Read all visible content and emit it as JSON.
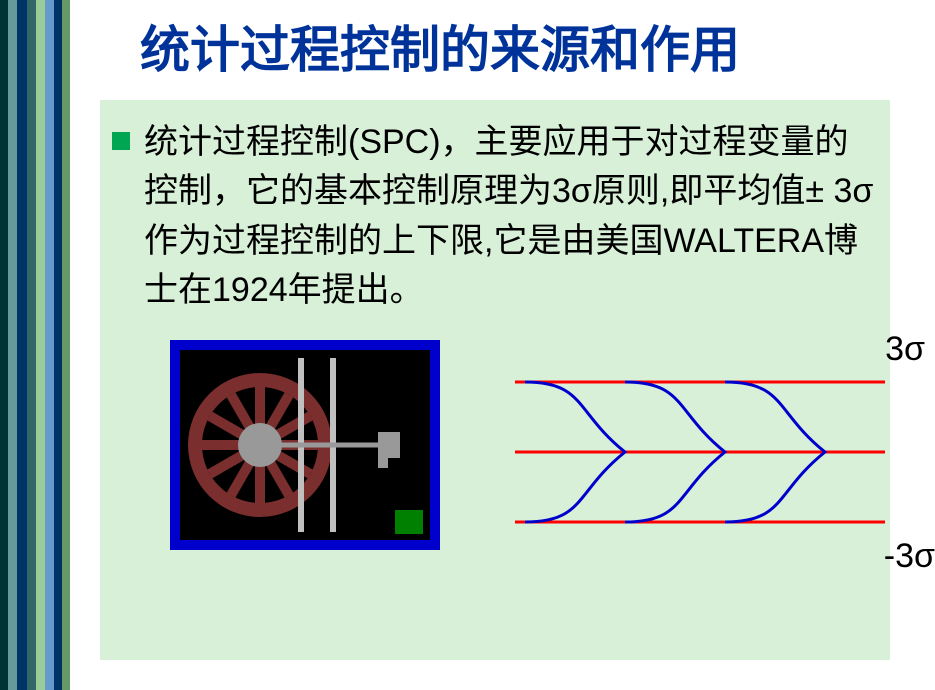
{
  "sideStripes": {
    "colors": [
      "#003333",
      "#669999",
      "#003366",
      "#336666",
      "#99cc99",
      "#6699cc",
      "#003366",
      "#669966"
    ],
    "widths": [
      8,
      9,
      10,
      9,
      9,
      9,
      8,
      8
    ]
  },
  "title": "统计过程控制的来源和作用",
  "bodyText": "统计过程控制(SPC)，主要应用于对过程变量的控制，它的基本控制原理为3σ原则,即平均值± 3σ作为过程控制的上下限,它是由美国WALTERA博士在1924年提出。",
  "contentBackground": "#d8f0d8",
  "titleColor": "#003399",
  "bulletColor": "#00a651",
  "wheel": {
    "borderColor": "#0000cc",
    "bgColor": "#000000",
    "rimColor": "#7a2e2e",
    "hubColor": "#999999",
    "spokeColor": "#999999",
    "barColor": "#c0c0c0",
    "accentColor": "#008000"
  },
  "chart": {
    "lineColor": "#ff0000",
    "curveColor": "#0000cc",
    "upperLabel": "3σ",
    "lowerLabel": "-3σ",
    "curves": [
      {
        "start": 10
      },
      {
        "start": 110
      },
      {
        "start": 210
      }
    ],
    "yTop": 42,
    "yMid": 112,
    "yBot": 182,
    "amplitude": 100
  }
}
